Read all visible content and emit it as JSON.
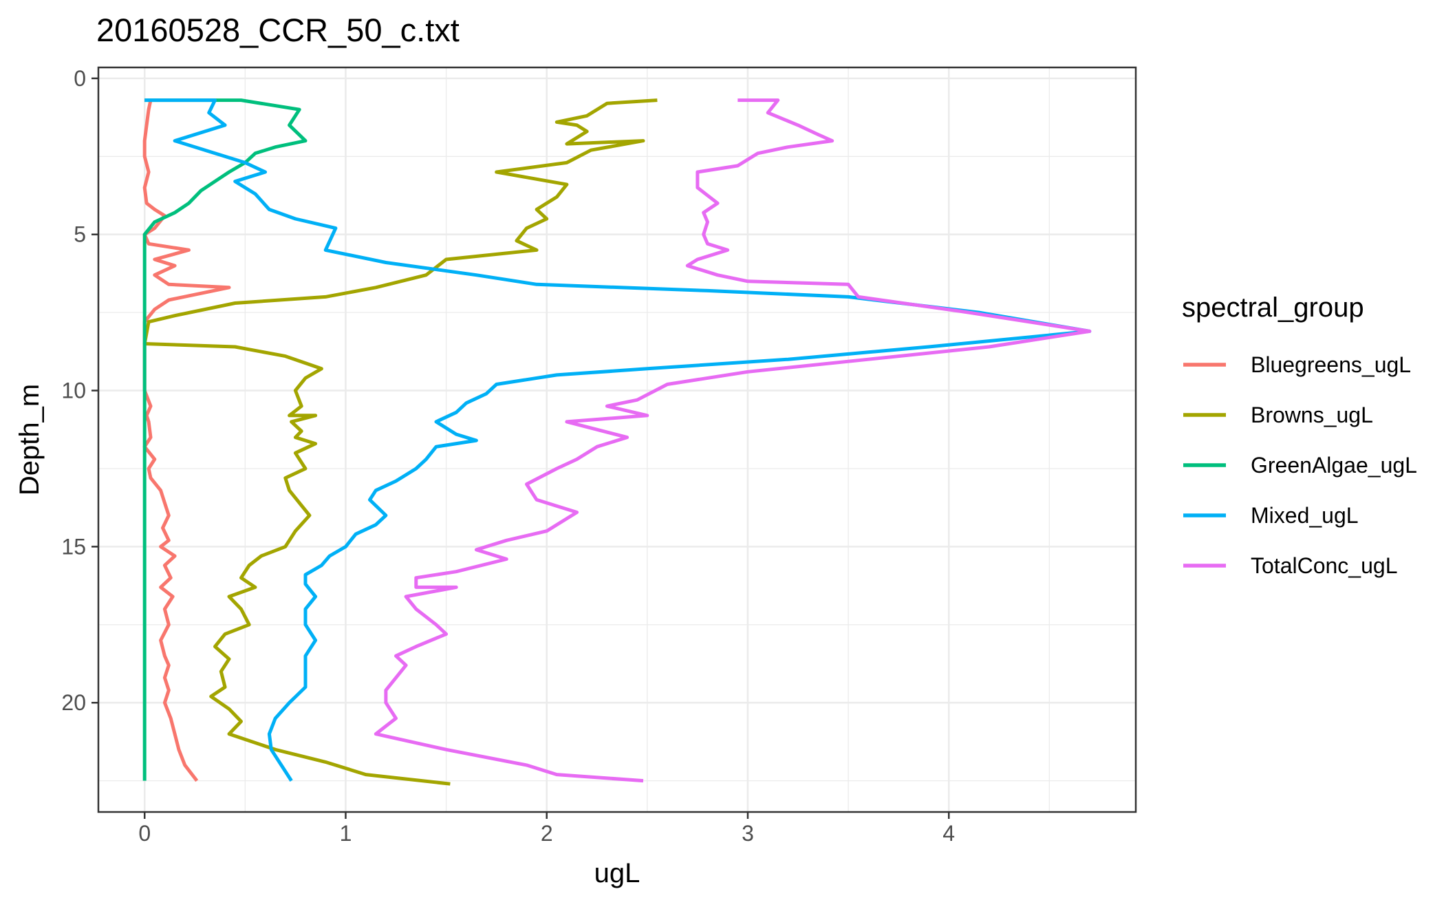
{
  "chart_data": {
    "type": "line",
    "title": "20160528_CCR_50_c.txt",
    "xlabel": "ugL",
    "ylabel": "Depth_m",
    "xlim": [
      -0.23,
      4.93
    ],
    "ylim": [
      23.5,
      -0.35
    ],
    "y_reversed": true,
    "grid": true,
    "x_ticks": [
      0,
      1,
      2,
      3,
      4
    ],
    "x_tick_labels": [
      "0",
      "1",
      "2",
      "3",
      "4"
    ],
    "y_ticks": [
      0,
      5,
      10,
      15,
      20
    ],
    "y_tick_labels": [
      "0",
      "5",
      "10",
      "15",
      "20"
    ],
    "legend": {
      "title": "spectral_group",
      "placement": "right",
      "entries": [
        "Bluegreens_ugL",
        "Browns_ugL",
        "GreenAlgae_ugL",
        "Mixed_ugL",
        "TotalConc_ugL"
      ]
    },
    "series": [
      {
        "name": "Bluegreens_ugL",
        "color": "#F8766D",
        "points": [
          [
            0.03,
            0.7
          ],
          [
            0.02,
            1.0
          ],
          [
            0.01,
            1.5
          ],
          [
            0.0,
            2.0
          ],
          [
            0.0,
            2.5
          ],
          [
            0.02,
            3.0
          ],
          [
            0.0,
            3.5
          ],
          [
            0.01,
            4.0
          ],
          [
            0.05,
            4.2
          ],
          [
            0.1,
            4.4
          ],
          [
            0.05,
            4.8
          ],
          [
            0.0,
            5.0
          ],
          [
            0.02,
            5.3
          ],
          [
            0.22,
            5.5
          ],
          [
            0.05,
            5.8
          ],
          [
            0.15,
            6.0
          ],
          [
            0.05,
            6.3
          ],
          [
            0.12,
            6.6
          ],
          [
            0.42,
            6.7
          ],
          [
            0.12,
            7.1
          ],
          [
            0.05,
            7.4
          ],
          [
            0.0,
            7.8
          ],
          [
            0.0,
            8.5
          ],
          [
            0.0,
            9.0
          ],
          [
            0.0,
            10.0
          ],
          [
            0.03,
            10.5
          ],
          [
            0.01,
            10.8
          ],
          [
            0.02,
            11.0
          ],
          [
            0.03,
            11.5
          ],
          [
            0.0,
            11.8
          ],
          [
            0.05,
            12.2
          ],
          [
            0.02,
            12.5
          ],
          [
            0.03,
            12.8
          ],
          [
            0.08,
            13.2
          ],
          [
            0.1,
            13.6
          ],
          [
            0.12,
            14.0
          ],
          [
            0.09,
            14.4
          ],
          [
            0.12,
            14.8
          ],
          [
            0.08,
            15.0
          ],
          [
            0.15,
            15.3
          ],
          [
            0.1,
            15.6
          ],
          [
            0.13,
            16.0
          ],
          [
            0.08,
            16.3
          ],
          [
            0.14,
            16.6
          ],
          [
            0.1,
            17.0
          ],
          [
            0.12,
            17.5
          ],
          [
            0.08,
            18.0
          ],
          [
            0.1,
            18.5
          ],
          [
            0.12,
            18.8
          ],
          [
            0.1,
            19.2
          ],
          [
            0.12,
            19.6
          ],
          [
            0.1,
            20.0
          ],
          [
            0.13,
            20.5
          ],
          [
            0.15,
            21.0
          ],
          [
            0.17,
            21.5
          ],
          [
            0.2,
            22.0
          ],
          [
            0.26,
            22.5
          ]
        ]
      },
      {
        "name": "Browns_ugL",
        "color": "#A3A500",
        "points": [
          [
            2.55,
            0.7
          ],
          [
            2.3,
            0.8
          ],
          [
            2.2,
            1.2
          ],
          [
            2.05,
            1.4
          ],
          [
            2.15,
            1.5
          ],
          [
            2.2,
            1.7
          ],
          [
            2.1,
            2.1
          ],
          [
            2.48,
            2.0
          ],
          [
            2.22,
            2.3
          ],
          [
            2.1,
            2.7
          ],
          [
            1.75,
            3.0
          ],
          [
            2.1,
            3.4
          ],
          [
            2.05,
            3.8
          ],
          [
            1.95,
            4.2
          ],
          [
            2.0,
            4.5
          ],
          [
            1.9,
            4.8
          ],
          [
            1.85,
            5.2
          ],
          [
            1.95,
            5.5
          ],
          [
            1.5,
            5.8
          ],
          [
            1.4,
            6.3
          ],
          [
            1.15,
            6.7
          ],
          [
            0.9,
            7.0
          ],
          [
            0.45,
            7.2
          ],
          [
            0.15,
            7.6
          ],
          [
            0.02,
            7.8
          ],
          [
            0.0,
            8.5
          ],
          [
            0.45,
            8.6
          ],
          [
            0.7,
            8.9
          ],
          [
            0.88,
            9.3
          ],
          [
            0.8,
            9.6
          ],
          [
            0.75,
            10.0
          ],
          [
            0.78,
            10.5
          ],
          [
            0.72,
            10.8
          ],
          [
            0.85,
            10.8
          ],
          [
            0.73,
            11.0
          ],
          [
            0.78,
            11.3
          ],
          [
            0.75,
            11.5
          ],
          [
            0.85,
            11.7
          ],
          [
            0.75,
            12.0
          ],
          [
            0.8,
            12.5
          ],
          [
            0.7,
            12.8
          ],
          [
            0.72,
            13.2
          ],
          [
            0.82,
            14.0
          ],
          [
            0.75,
            14.5
          ],
          [
            0.7,
            15.0
          ],
          [
            0.58,
            15.3
          ],
          [
            0.52,
            15.6
          ],
          [
            0.48,
            16.0
          ],
          [
            0.55,
            16.3
          ],
          [
            0.42,
            16.6
          ],
          [
            0.48,
            17.0
          ],
          [
            0.52,
            17.5
          ],
          [
            0.4,
            17.8
          ],
          [
            0.35,
            18.2
          ],
          [
            0.42,
            18.6
          ],
          [
            0.38,
            19.0
          ],
          [
            0.4,
            19.5
          ],
          [
            0.33,
            19.8
          ],
          [
            0.42,
            20.2
          ],
          [
            0.48,
            20.6
          ],
          [
            0.42,
            21.0
          ],
          [
            0.65,
            21.5
          ],
          [
            0.9,
            21.9
          ],
          [
            1.1,
            22.3
          ],
          [
            1.52,
            22.6
          ]
        ]
      },
      {
        "name": "GreenAlgae_ugL",
        "color": "#00BF7D",
        "points": [
          [
            0.0,
            0.7
          ],
          [
            0.35,
            0.7
          ],
          [
            0.48,
            0.7
          ],
          [
            0.77,
            1.0
          ],
          [
            0.72,
            1.5
          ],
          [
            0.8,
            2.0
          ],
          [
            0.65,
            2.2
          ],
          [
            0.55,
            2.4
          ],
          [
            0.5,
            2.7
          ],
          [
            0.42,
            3.0
          ],
          [
            0.35,
            3.3
          ],
          [
            0.28,
            3.6
          ],
          [
            0.22,
            4.0
          ],
          [
            0.15,
            4.3
          ],
          [
            0.05,
            4.6
          ],
          [
            0.0,
            5.0
          ],
          [
            0.0,
            8.0
          ],
          [
            0.0,
            12.0
          ],
          [
            0.0,
            16.0
          ],
          [
            0.0,
            20.0
          ],
          [
            0.0,
            22.5
          ]
        ]
      },
      {
        "name": "Mixed_ugL",
        "color": "#00B0F6",
        "points": [
          [
            0.0,
            0.7
          ],
          [
            0.35,
            0.7
          ],
          [
            0.32,
            1.1
          ],
          [
            0.4,
            1.5
          ],
          [
            0.15,
            2.0
          ],
          [
            0.35,
            2.4
          ],
          [
            0.5,
            2.7
          ],
          [
            0.6,
            3.0
          ],
          [
            0.45,
            3.3
          ],
          [
            0.55,
            3.7
          ],
          [
            0.62,
            4.2
          ],
          [
            0.75,
            4.5
          ],
          [
            0.95,
            4.8
          ],
          [
            0.9,
            5.5
          ],
          [
            1.2,
            5.9
          ],
          [
            1.65,
            6.3
          ],
          [
            1.95,
            6.6
          ],
          [
            2.8,
            6.8
          ],
          [
            3.5,
            7.0
          ],
          [
            4.15,
            7.5
          ],
          [
            4.7,
            8.1
          ],
          [
            3.9,
            8.6
          ],
          [
            3.2,
            9.0
          ],
          [
            2.5,
            9.3
          ],
          [
            2.05,
            9.5
          ],
          [
            1.75,
            9.8
          ],
          [
            1.7,
            10.1
          ],
          [
            1.6,
            10.4
          ],
          [
            1.55,
            10.7
          ],
          [
            1.45,
            11.0
          ],
          [
            1.55,
            11.4
          ],
          [
            1.65,
            11.6
          ],
          [
            1.45,
            11.8
          ],
          [
            1.4,
            12.2
          ],
          [
            1.35,
            12.5
          ],
          [
            1.25,
            12.9
          ],
          [
            1.15,
            13.2
          ],
          [
            1.12,
            13.5
          ],
          [
            1.2,
            14.0
          ],
          [
            1.15,
            14.3
          ],
          [
            1.05,
            14.6
          ],
          [
            1.0,
            15.0
          ],
          [
            0.92,
            15.3
          ],
          [
            0.88,
            15.6
          ],
          [
            0.8,
            15.9
          ],
          [
            0.8,
            16.2
          ],
          [
            0.85,
            16.6
          ],
          [
            0.8,
            17.0
          ],
          [
            0.8,
            17.5
          ],
          [
            0.85,
            18.0
          ],
          [
            0.8,
            18.5
          ],
          [
            0.8,
            19.0
          ],
          [
            0.8,
            19.5
          ],
          [
            0.72,
            20.0
          ],
          [
            0.65,
            20.5
          ],
          [
            0.62,
            21.0
          ],
          [
            0.63,
            21.5
          ],
          [
            0.68,
            22.0
          ],
          [
            0.73,
            22.5
          ]
        ]
      },
      {
        "name": "TotalConc_ugL",
        "color": "#E76BF3",
        "points": [
          [
            2.95,
            0.7
          ],
          [
            3.15,
            0.7
          ],
          [
            3.1,
            1.1
          ],
          [
            3.25,
            1.5
          ],
          [
            3.35,
            1.8
          ],
          [
            3.42,
            2.0
          ],
          [
            3.2,
            2.2
          ],
          [
            3.05,
            2.4
          ],
          [
            2.95,
            2.8
          ],
          [
            2.75,
            3.0
          ],
          [
            2.75,
            3.5
          ],
          [
            2.85,
            4.0
          ],
          [
            2.78,
            4.3
          ],
          [
            2.8,
            4.6
          ],
          [
            2.78,
            5.0
          ],
          [
            2.8,
            5.3
          ],
          [
            2.9,
            5.5
          ],
          [
            2.75,
            5.8
          ],
          [
            2.7,
            6.0
          ],
          [
            2.85,
            6.3
          ],
          [
            3.0,
            6.5
          ],
          [
            3.5,
            6.6
          ],
          [
            3.55,
            7.0
          ],
          [
            4.1,
            7.5
          ],
          [
            4.7,
            8.1
          ],
          [
            4.2,
            8.6
          ],
          [
            3.6,
            9.0
          ],
          [
            3.0,
            9.4
          ],
          [
            2.6,
            9.8
          ],
          [
            2.45,
            10.3
          ],
          [
            2.3,
            10.5
          ],
          [
            2.5,
            10.8
          ],
          [
            2.1,
            11.0
          ],
          [
            2.4,
            11.5
          ],
          [
            2.25,
            11.8
          ],
          [
            2.15,
            12.2
          ],
          [
            2.05,
            12.5
          ],
          [
            1.9,
            13.0
          ],
          [
            1.95,
            13.5
          ],
          [
            2.15,
            13.9
          ],
          [
            2.0,
            14.5
          ],
          [
            1.8,
            14.8
          ],
          [
            1.65,
            15.1
          ],
          [
            1.8,
            15.4
          ],
          [
            1.55,
            15.8
          ],
          [
            1.35,
            16.0
          ],
          [
            1.35,
            16.3
          ],
          [
            1.55,
            16.3
          ],
          [
            1.3,
            16.6
          ],
          [
            1.35,
            17.0
          ],
          [
            1.45,
            17.5
          ],
          [
            1.5,
            17.8
          ],
          [
            1.35,
            18.2
          ],
          [
            1.25,
            18.5
          ],
          [
            1.3,
            18.8
          ],
          [
            1.25,
            19.2
          ],
          [
            1.2,
            19.6
          ],
          [
            1.2,
            20.0
          ],
          [
            1.25,
            20.5
          ],
          [
            1.15,
            21.0
          ],
          [
            1.5,
            21.5
          ],
          [
            1.9,
            22.0
          ],
          [
            2.05,
            22.3
          ],
          [
            2.48,
            22.5
          ]
        ]
      }
    ]
  }
}
